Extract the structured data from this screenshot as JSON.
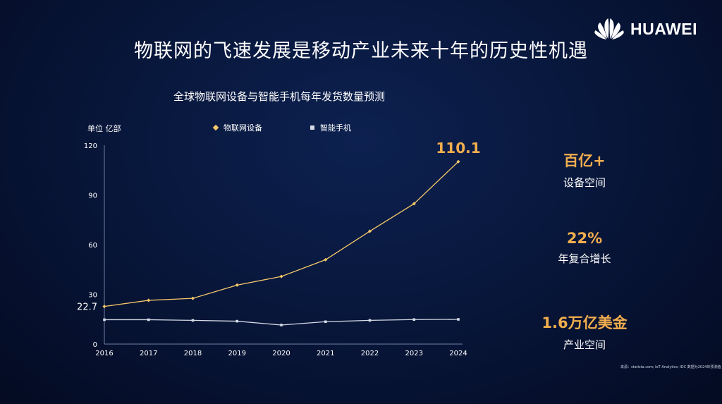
{
  "brand": {
    "name": "HUAWEI"
  },
  "title": "物联网的飞速发展是移动产业未来十年的历史性机遇",
  "chart": {
    "title": "全球物联网设备与智能手机每年发货数量预测",
    "unit": "单位 亿部"
  },
  "chart_data": {
    "type": "line",
    "title": "全球物联网设备与智能手机每年发货数量预测",
    "ylabel": "单位 亿部",
    "xlabel": "",
    "categories": [
      "2016",
      "2017",
      "2018",
      "2019",
      "2020",
      "2021",
      "2022",
      "2023",
      "2024"
    ],
    "yticks": [
      0,
      30,
      60,
      90,
      120
    ],
    "ylim": [
      0,
      120
    ],
    "grid": false,
    "legend_position": "top",
    "series": [
      {
        "name": "物联网设备",
        "color": "#f5c86a",
        "marker": "diamond",
        "values": [
          22.7,
          26.4,
          27.6,
          35.6,
          40.8,
          50.9,
          68.1,
          84.7,
          110.1
        ]
      },
      {
        "name": "智能手机",
        "color": "#d6dbe6",
        "marker": "square",
        "values": [
          14.7,
          14.7,
          14.3,
          13.8,
          11.5,
          13.5,
          14.3,
          14.8,
          14.9
        ]
      }
    ],
    "annotations": [
      {
        "text": "22.7",
        "series": "物联网设备",
        "category": "2016"
      },
      {
        "text": "110.1",
        "series": "物联网设备",
        "category": "2024"
      }
    ]
  },
  "stats": [
    {
      "value": "百亿+",
      "caption": "设备空间"
    },
    {
      "value": "22%",
      "caption": "年复合增长"
    },
    {
      "value": "1.6万亿美金",
      "caption": "产业空间"
    }
  ],
  "source": "来源：statista.com; IoT Analytics; IDC 数据为2024年预测值"
}
